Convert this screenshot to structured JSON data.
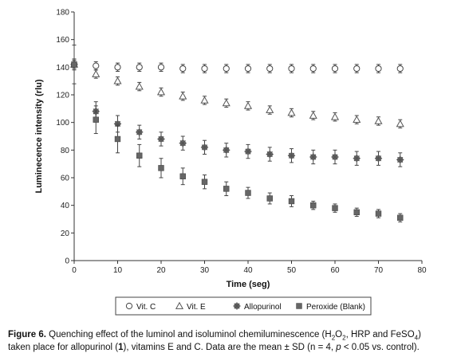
{
  "chart_data": {
    "type": "scatter",
    "xlabel": "Time (seg)",
    "ylabel": "Luminecence intensity (rlu)",
    "xlim": [
      0,
      80
    ],
    "ylim": [
      0,
      180
    ],
    "x_ticks": [
      "0",
      "10",
      "20",
      "30",
      "40",
      "50",
      "60",
      "70",
      "80"
    ],
    "y_ticks": [
      "0",
      "20",
      "40",
      "60",
      "80",
      "100",
      "120",
      "140",
      "160",
      "180"
    ],
    "grid": false,
    "legend_position": "bottom",
    "x": [
      0,
      5,
      10,
      15,
      20,
      25,
      30,
      35,
      40,
      45,
      50,
      55,
      60,
      65,
      70,
      75
    ],
    "series": [
      {
        "name": "Vit. C",
        "marker": "open-circle",
        "values": [
          142,
          141,
          140,
          140,
          140,
          139,
          139,
          139,
          139,
          139,
          139,
          139,
          139,
          139,
          139,
          139
        ],
        "errors": [
          3,
          3,
          3,
          3,
          3,
          3,
          3,
          3,
          3,
          3,
          3,
          3,
          3,
          3,
          3,
          3
        ]
      },
      {
        "name": "Vit. E",
        "marker": "open-triangle",
        "values": [
          142,
          135,
          130,
          126,
          122,
          119,
          116,
          114,
          112,
          109,
          107,
          105,
          104,
          102,
          101,
          99
        ],
        "errors": [
          3,
          3,
          3,
          3,
          3,
          3,
          3,
          3,
          3,
          3,
          3,
          3,
          3,
          3,
          3,
          3
        ]
      },
      {
        "name": "Allopurinol",
        "marker": "asterisk-circle",
        "values": [
          142,
          108,
          99,
          93,
          88,
          85,
          82,
          80,
          79,
          77,
          76,
          75,
          75,
          74,
          74,
          73
        ],
        "errors": [
          4,
          7,
          6,
          5,
          5,
          5,
          5,
          5,
          5,
          5,
          5,
          5,
          5,
          5,
          5,
          5
        ]
      },
      {
        "name": "Peroxide (Blank)",
        "marker": "filled-square",
        "values": [
          142,
          102,
          88,
          76,
          67,
          61,
          57,
          52,
          49,
          45,
          43,
          40,
          38,
          35,
          34,
          31
        ],
        "errors": [
          14,
          10,
          10,
          8,
          7,
          6,
          5,
          5,
          4,
          4,
          4,
          3,
          3,
          3,
          3,
          3
        ]
      }
    ]
  },
  "caption": {
    "figure_label": "Figure 6.",
    "text_1": " Quenching effect of the luminol and isoluminol chemiluminescence (H",
    "h2o2_sub_1": "2",
    "o_text": "O",
    "h2o2_sub_2": "2",
    "text_2": ", HRP and FeSO",
    "feso4_sub": "4",
    "text_3": ")",
    "text_4": "taken place for allopurinol (",
    "compound_number": "1",
    "text_5": "), vitamins E and C. Data are the mean ± SD (n = 4, ",
    "p_symbol": "p",
    "text_6": " < 0.05 vs. control)."
  }
}
